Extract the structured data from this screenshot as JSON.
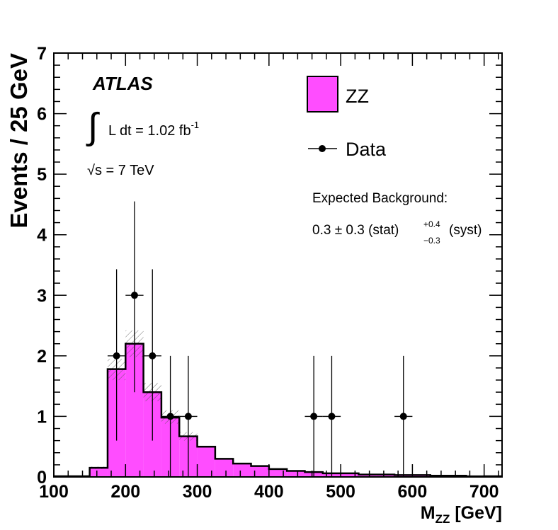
{
  "chart_data": {
    "type": "histogram",
    "title": "",
    "xlabel": "M",
    "xlabel_sub": "ZZ",
    "xlabel_unit": " [GeV]",
    "ylabel": "Events / 25 GeV",
    "xlim": [
      100,
      725
    ],
    "ylim": [
      0,
      7
    ],
    "x_ticks": [
      100,
      200,
      300,
      400,
      500,
      600,
      700
    ],
    "y_ticks": [
      0,
      1,
      2,
      3,
      4,
      5,
      6,
      7
    ],
    "bin_width": 25,
    "series": [
      {
        "name": "ZZ",
        "kind": "filled-histogram",
        "color": "#ff4dff",
        "bins": [
          {
            "lo": 150,
            "hi": 175,
            "value": 0.15
          },
          {
            "lo": 175,
            "hi": 200,
            "value": 1.78
          },
          {
            "lo": 200,
            "hi": 225,
            "value": 2.2
          },
          {
            "lo": 225,
            "hi": 250,
            "value": 1.4
          },
          {
            "lo": 250,
            "hi": 275,
            "value": 0.98
          },
          {
            "lo": 275,
            "hi": 300,
            "value": 0.67
          },
          {
            "lo": 300,
            "hi": 325,
            "value": 0.5
          },
          {
            "lo": 325,
            "hi": 350,
            "value": 0.3
          },
          {
            "lo": 350,
            "hi": 375,
            "value": 0.22
          },
          {
            "lo": 375,
            "hi": 400,
            "value": 0.18
          },
          {
            "lo": 400,
            "hi": 425,
            "value": 0.13
          },
          {
            "lo": 425,
            "hi": 450,
            "value": 0.1
          },
          {
            "lo": 450,
            "hi": 475,
            "value": 0.08
          },
          {
            "lo": 475,
            "hi": 500,
            "value": 0.06
          },
          {
            "lo": 500,
            "hi": 525,
            "value": 0.06
          },
          {
            "lo": 525,
            "hi": 550,
            "value": 0.04
          },
          {
            "lo": 550,
            "hi": 575,
            "value": 0.04
          },
          {
            "lo": 575,
            "hi": 600,
            "value": 0.03
          },
          {
            "lo": 600,
            "hi": 625,
            "value": 0.03
          },
          {
            "lo": 625,
            "hi": 650,
            "value": 0.02
          },
          {
            "lo": 650,
            "hi": 675,
            "value": 0.02
          },
          {
            "lo": 675,
            "hi": 700,
            "value": 0.01
          }
        ],
        "uncertainty": [
          {
            "lo": 150,
            "hi": 175,
            "up": 0.17,
            "down": 0.13
          },
          {
            "lo": 175,
            "hi": 200,
            "up": 1.95,
            "down": 1.6
          },
          {
            "lo": 200,
            "hi": 225,
            "up": 2.42,
            "down": 1.98
          },
          {
            "lo": 225,
            "hi": 250,
            "up": 1.55,
            "down": 1.25
          },
          {
            "lo": 250,
            "hi": 275,
            "up": 1.1,
            "down": 0.88
          },
          {
            "lo": 275,
            "hi": 300,
            "up": 0.74,
            "down": 0.6
          }
        ]
      },
      {
        "name": "Data",
        "kind": "points",
        "points": [
          {
            "x": 187.5,
            "y": 2,
            "err_up": 1.43,
            "err_down": 1.4
          },
          {
            "x": 212.5,
            "y": 3,
            "err_up": 1.55,
            "err_down": 1.6
          },
          {
            "x": 237.5,
            "y": 2,
            "err_up": 1.43,
            "err_down": 1.4
          },
          {
            "x": 262.5,
            "y": 1,
            "err_up": 1.0,
            "err_down": 1.0
          },
          {
            "x": 287.5,
            "y": 1,
            "err_up": 1.0,
            "err_down": 1.0
          },
          {
            "x": 462.5,
            "y": 1,
            "err_up": 1.0,
            "err_down": 1.0
          },
          {
            "x": 487.5,
            "y": 1,
            "err_up": 1.0,
            "err_down": 1.0
          },
          {
            "x": 587.5,
            "y": 1,
            "err_up": 1.0,
            "err_down": 1.0
          }
        ]
      }
    ],
    "legend": [
      {
        "label": "ZZ",
        "kind": "box"
      },
      {
        "label": "Data",
        "kind": "marker"
      }
    ],
    "legend_position": "top-right"
  },
  "annotations": {
    "experiment": "ATLAS",
    "integral_sign": "∫",
    "lumi_text": "L dt = 1.02 fb",
    "lumi_exp": "-1",
    "sqrt_sign": "√",
    "energy_text": "s = 7 TeV",
    "background_title": "Expected Background:",
    "background_value": "0.3 ± 0.3 (stat)",
    "background_up": "+0.4",
    "background_down": "−0.3",
    "background_suffix": "(syst)"
  }
}
